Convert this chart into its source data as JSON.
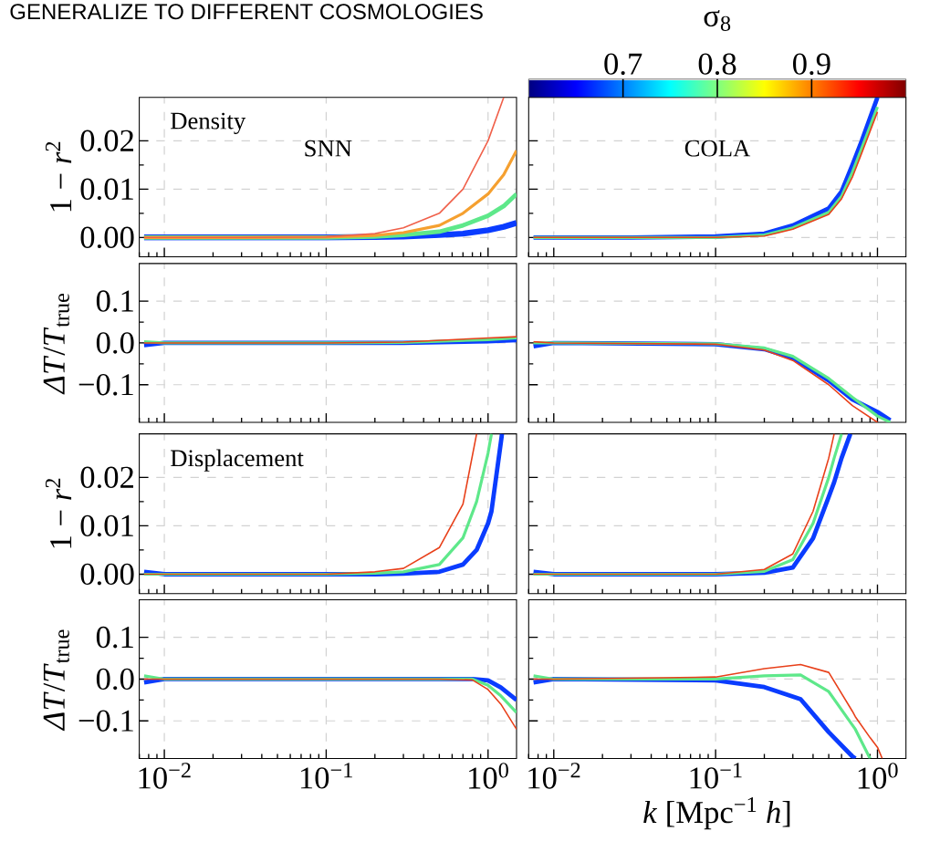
{
  "chart_data": [
    {
      "type": "line",
      "title": "GENERALIZE TO DIFFERENT COSMOLOGIES",
      "ylabel": "1 − *r*$^{2}$",
      "annotations": [
        "Density",
        "SNN"
      ],
      "log": "x",
      "grid": true,
      "tick_labels": "y",
      "xlim": [
        0.007,
        1.5
      ],
      "ylim": [
        -0.004,
        0.029
      ],
      "xticks": [
        {
          "value": 0.01,
          "label": null
        },
        {
          "value": 0.1,
          "label": null
        },
        {
          "value": 1,
          "label": null
        }
      ],
      "yticks": [
        {
          "value": 0,
          "label": "0.00"
        },
        {
          "value": 0.01,
          "label": "0.01"
        },
        {
          "value": 0.02,
          "label": "0.02"
        }
      ],
      "x": [
        0.0075,
        0.01,
        0.03,
        0.1,
        0.2,
        0.3,
        0.5,
        0.7,
        1.0,
        1.25,
        1.5
      ],
      "series": [
        {
          "color": "#0a3cff",
          "values": [
            0,
            0,
            0,
            0,
            0.0001,
            0.0002,
            0.0005,
            0.0008,
            0.0015,
            0.0022,
            0.003
          ]
        },
        {
          "color": "#5ee88a",
          "values": [
            0,
            0,
            0,
            0,
            0.0002,
            0.0005,
            0.0012,
            0.0025,
            0.0045,
            0.0065,
            0.009
          ]
        },
        {
          "color": "#f5a030",
          "values": [
            0,
            0,
            0,
            0.0001,
            0.0004,
            0.001,
            0.0025,
            0.005,
            0.009,
            0.013,
            0.018
          ]
        },
        {
          "color": "#f0604a",
          "values": [
            0,
            0,
            0,
            0.0001,
            0.0008,
            0.002,
            0.005,
            0.01,
            0.02,
            0.029,
            null
          ]
        }
      ]
    },
    {
      "type": "line",
      "annotations": [
        "COLA"
      ],
      "clabel": "σ$_{8}$",
      "clim": [
        0.6,
        1.0
      ],
      "cticks": [
        0.7,
        0.8,
        0.9
      ],
      "log": "x",
      "grid": true,
      "tick_labels": false,
      "xlim": [
        0.007,
        1.5
      ],
      "ylim": [
        -0.004,
        0.029
      ],
      "xticks": [
        {
          "value": 0.01,
          "label": null
        },
        {
          "value": 0.1,
          "label": null
        },
        {
          "value": 1,
          "label": null
        }
      ],
      "yticks": [
        {
          "value": 0,
          "label": null
        },
        {
          "value": 0.01,
          "label": null
        },
        {
          "value": 0.02,
          "label": null
        }
      ],
      "x": [
        0.0075,
        0.01,
        0.03,
        0.1,
        0.2,
        0.3,
        0.5,
        0.6,
        0.7,
        0.8,
        1.0
      ],
      "series": [
        {
          "color": "#0a3cff",
          "values": [
            0,
            0,
            0,
            0.0002,
            0.0008,
            0.0025,
            0.006,
            0.0095,
            0.015,
            0.02,
            0.029
          ]
        },
        {
          "color": "#5ee88a",
          "values": [
            0,
            0,
            0,
            0,
            0.0005,
            0.002,
            0.0052,
            0.0085,
            0.0135,
            0.0185,
            0.027
          ]
        },
        {
          "color": "#e8401a",
          "values": [
            0,
            0,
            0,
            0,
            0.0003,
            0.0017,
            0.0048,
            0.008,
            0.0125,
            0.0175,
            0.026
          ]
        }
      ]
    },
    {
      "type": "line",
      "ylabel": "*ΔT*/*T*$_{true}$",
      "log": "x",
      "grid": true,
      "tick_labels": "y",
      "xlim": [
        0.007,
        1.5
      ],
      "ylim": [
        -0.19,
        0.19
      ],
      "xticks": [
        {
          "value": 0.01,
          "label": null
        },
        {
          "value": 0.1,
          "label": null
        },
        {
          "value": 1,
          "label": null
        }
      ],
      "yticks": [
        {
          "value": -0.1,
          "label": "−0.1"
        },
        {
          "value": 0,
          "label": "0.0"
        },
        0.1
      ],
      "x": [
        0.0075,
        0.01,
        0.1,
        0.3,
        1.0,
        1.5
      ],
      "series": [
        {
          "color": "#0a3cff",
          "values": [
            -0.005,
            0,
            0,
            0,
            0.004,
            0.007
          ]
        },
        {
          "color": "#5ee88a",
          "values": [
            0.003,
            0,
            0,
            0.001,
            0.008,
            0.012
          ]
        },
        {
          "color": "#e8401a",
          "values": [
            0,
            0,
            0,
            0.002,
            0.012,
            0.015
          ]
        }
      ]
    },
    {
      "type": "line",
      "log": "x",
      "grid": true,
      "tick_labels": false,
      "xlim": [
        0.007,
        1.5
      ],
      "ylim": [
        -0.19,
        0.19
      ],
      "xticks": [
        {
          "value": 0.01,
          "label": null
        },
        {
          "value": 0.1,
          "label": null
        },
        {
          "value": 1,
          "label": null
        }
      ],
      "yticks": [
        {
          "value": -0.1,
          "label": null
        },
        {
          "value": 0,
          "label": null
        },
        {
          "value": 0.1,
          "label": null
        }
      ],
      "x": [
        0.0075,
        0.01,
        0.1,
        0.2,
        0.3,
        0.5,
        0.7,
        1.0,
        1.2
      ],
      "series": [
        {
          "color": "#0a3cff",
          "values": [
            -0.008,
            0,
            -0.003,
            -0.015,
            -0.036,
            -0.09,
            -0.135,
            -0.165,
            -0.185
          ]
        },
        {
          "color": "#5ee88a",
          "values": [
            0,
            0,
            -0.002,
            -0.012,
            -0.032,
            -0.085,
            -0.13,
            -0.175,
            -0.19
          ]
        },
        {
          "color": "#e8401a",
          "values": [
            0.003,
            0,
            -0.003,
            -0.017,
            -0.042,
            -0.1,
            -0.15,
            -0.19,
            null
          ]
        }
      ]
    },
    {
      "type": "line",
      "ylabel": "1 − *r*$^{2}$",
      "annotations": [
        "Displacement"
      ],
      "log": "x",
      "grid": true,
      "tick_labels": "y",
      "xlim": [
        0.007,
        1.5
      ],
      "ylim": [
        -0.004,
        0.029
      ],
      "xticks": [
        {
          "value": 0.01,
          "label": null
        },
        {
          "value": 0.1,
          "label": null
        },
        {
          "value": 1,
          "label": null
        }
      ],
      "yticks": [
        {
          "value": 0,
          "label": "0.00"
        },
        {
          "value": 0.01,
          "label": "0.01"
        },
        {
          "value": 0.02,
          "label": "0.02"
        }
      ],
      "x": [
        0.0075,
        0.01,
        0.1,
        0.2,
        0.3,
        0.5,
        0.7,
        0.85,
        1.0,
        1.05,
        1.22
      ],
      "series": [
        {
          "color": "#0a3cff",
          "values": [
            0.0005,
            0,
            0,
            0,
            0.0001,
            0.0005,
            0.002,
            0.005,
            0.0105,
            0.013,
            0.029
          ]
        },
        {
          "color": "#5ee88a",
          "values": [
            0,
            0,
            0,
            0.0002,
            0.0005,
            0.002,
            0.0075,
            0.015,
            0.025,
            0.029,
            null
          ]
        },
        {
          "color": "#e8401a",
          "values": [
            0,
            0,
            0,
            0.0005,
            0.0012,
            0.0055,
            0.0145,
            0.029,
            null,
            null,
            null
          ]
        }
      ]
    },
    {
      "type": "line",
      "log": "x",
      "grid": true,
      "tick_labels": false,
      "xlim": [
        0.007,
        1.5
      ],
      "ylim": [
        -0.004,
        0.029
      ],
      "xticks": [
        {
          "value": 0.01,
          "label": null
        },
        {
          "value": 0.1,
          "label": null
        },
        {
          "value": 1,
          "label": null
        }
      ],
      "yticks": [
        {
          "value": 0,
          "label": null
        },
        {
          "value": 0.01,
          "label": null
        },
        {
          "value": 0.02,
          "label": null
        }
      ],
      "x": [
        0.0075,
        0.01,
        0.1,
        0.2,
        0.3,
        0.4,
        0.5,
        0.54,
        0.6,
        0.68
      ],
      "series": [
        {
          "color": "#0a3cff",
          "values": [
            0.0005,
            0,
            0,
            0.0003,
            0.0014,
            0.0074,
            0.016,
            0.019,
            0.024,
            0.029
          ]
        },
        {
          "color": "#5ee88a",
          "values": [
            0,
            0,
            0,
            0.0006,
            0.003,
            0.0105,
            0.02,
            0.024,
            0.029,
            null
          ]
        },
        {
          "color": "#e8401a",
          "values": [
            0,
            0,
            0,
            0.001,
            0.0042,
            0.013,
            0.024,
            0.029,
            null,
            null
          ]
        }
      ]
    },
    {
      "type": "line",
      "ylabel": "*ΔT*/*T*$_{true}$",
      "log": "x",
      "grid": true,
      "xlim": [
        0.007,
        1.5
      ],
      "ylim": [
        -0.19,
        0.19
      ],
      "xticks": [
        {
          "value": 0.01,
          "label": "10$^{−2}$"
        },
        {
          "value": 0.1,
          "label": "10$^{−1}$"
        },
        {
          "value": 1,
          "label": "10$^{0}$"
        }
      ],
      "yticks": [
        {
          "value": -0.1,
          "label": "−0.1"
        },
        {
          "value": 0,
          "label": "0.0"
        },
        0.1
      ],
      "x": [
        0.0075,
        0.01,
        0.1,
        0.5,
        0.8,
        1.0,
        1.2,
        1.5
      ],
      "series": [
        {
          "color": "#0a3cff",
          "values": [
            -0.008,
            0,
            0,
            0,
            0,
            -0.003,
            -0.02,
            -0.05
          ]
        },
        {
          "color": "#5ee88a",
          "values": [
            0.008,
            0,
            0,
            0,
            0,
            -0.015,
            -0.04,
            -0.08
          ]
        },
        {
          "color": "#e8401a",
          "values": [
            0,
            0,
            0,
            0,
            -0.002,
            -0.025,
            -0.06,
            -0.12
          ]
        }
      ]
    },
    {
      "type": "line",
      "xlabel": "*k* [Mpc$^{−1}$ *h*]",
      "log": "x",
      "grid": true,
      "tick_labels": "x",
      "xlim": [
        0.007,
        1.5
      ],
      "ylim": [
        -0.19,
        0.19
      ],
      "xticks": [
        {
          "value": 0.01,
          "label": "10$^{−2}$"
        },
        {
          "value": 0.1,
          "label": "10$^{−1}$"
        },
        {
          "value": 1,
          "label": "10$^{0}$"
        }
      ],
      "yticks": [
        {
          "value": -0.1,
          "label": null
        },
        {
          "value": 0,
          "label": null
        },
        {
          "value": 0.1,
          "label": null
        }
      ],
      "x": [
        0.0075,
        0.01,
        0.1,
        0.2,
        0.335,
        0.5,
        0.7,
        0.73,
        0.9,
        1.0,
        1.07
      ],
      "series": [
        {
          "color": "#0a3cff",
          "values": [
            -0.008,
            0,
            -0.003,
            -0.019,
            -0.048,
            -0.127,
            -0.185,
            -0.19,
            null,
            null,
            null
          ]
        },
        {
          "color": "#5ee88a",
          "values": [
            0.008,
            0,
            0,
            0.008,
            0.01,
            -0.03,
            -0.11,
            -0.12,
            -0.19,
            null,
            null
          ]
        },
        {
          "color": "#e8401a",
          "values": [
            0,
            0,
            0.005,
            0.025,
            0.035,
            0.016,
            -0.077,
            -0.09,
            -0.14,
            -0.163,
            -0.19
          ]
        }
      ]
    }
  ]
}
